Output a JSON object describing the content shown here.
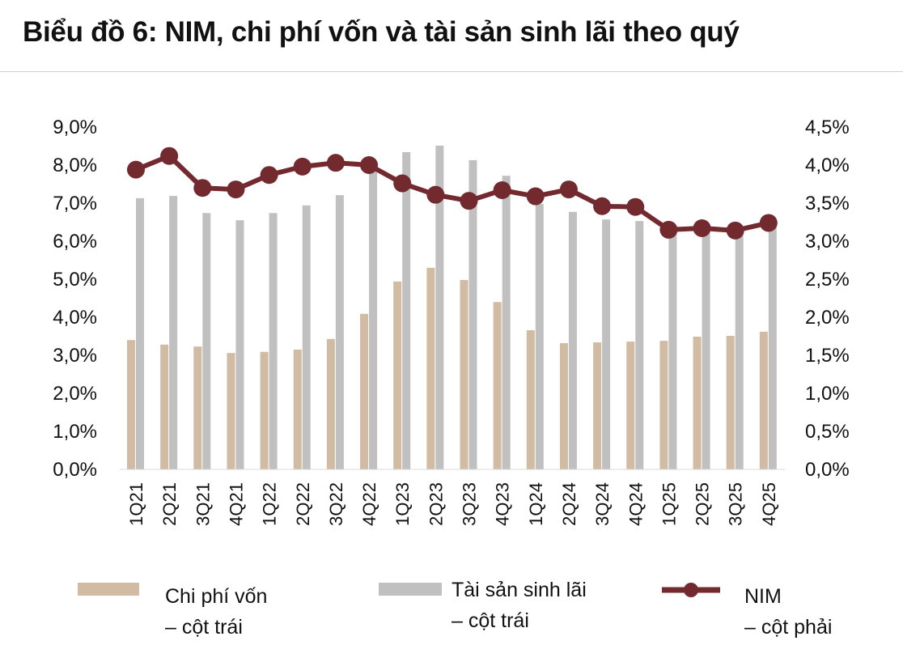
{
  "title": "Biểu đồ 6:  NIM, chi phí vốn và tài sản sinh lãi theo quý",
  "chart_data": {
    "type": "bar+line",
    "title": "Biểu đồ 6:  NIM, chi phí vốn và tài sản sinh lãi theo quý",
    "categories": [
      "1Q21",
      "2Q21",
      "3Q21",
      "4Q21",
      "1Q22",
      "2Q22",
      "3Q22",
      "4Q22",
      "1Q23",
      "2Q23",
      "3Q23",
      "4Q23",
      "1Q24",
      "2Q24",
      "3Q24",
      "4Q24",
      "1Q25",
      "2Q25",
      "3Q25",
      "4Q25"
    ],
    "left_axis": {
      "ylim": [
        0,
        9
      ],
      "ticks": [
        "0,0%",
        "1,0%",
        "2,0%",
        "3,0%",
        "4,0%",
        "5,0%",
        "6,0%",
        "7,0%",
        "8,0%",
        "9,0%"
      ]
    },
    "right_axis": {
      "ylim": [
        0,
        4.5
      ],
      "ticks": [
        "0,0%",
        "0,5%",
        "1,0%",
        "1,5%",
        "2,0%",
        "2,5%",
        "3,0%",
        "3,5%",
        "4,0%",
        "4,5%"
      ]
    },
    "grid": false,
    "legend_position": "bottom",
    "series": [
      {
        "name": "Chi phí vốn",
        "name_suffix": "– cột trái",
        "type": "bar",
        "axis": "left",
        "color": "#d1bca3",
        "values": [
          3.4,
          3.28,
          3.23,
          3.06,
          3.09,
          3.15,
          3.43,
          4.09,
          4.94,
          5.3,
          4.98,
          4.4,
          3.66,
          3.32,
          3.34,
          3.36,
          3.38,
          3.49,
          3.51,
          3.62
        ]
      },
      {
        "name": "Tài sản sinh lãi",
        "name_suffix": "– cột trái",
        "type": "bar",
        "axis": "left",
        "color": "#c0c0c0",
        "values": [
          7.13,
          7.19,
          6.74,
          6.55,
          6.74,
          6.94,
          7.21,
          7.9,
          8.34,
          8.51,
          8.13,
          7.72,
          6.98,
          6.77,
          6.57,
          6.53,
          6.2,
          6.28,
          6.2,
          6.38
        ]
      },
      {
        "name": "NIM",
        "name_suffix": "– cột phải",
        "type": "line",
        "axis": "right",
        "color": "#722a2f",
        "values": [
          3.94,
          4.12,
          3.7,
          3.68,
          3.87,
          3.98,
          4.03,
          4.0,
          3.76,
          3.61,
          3.53,
          3.67,
          3.59,
          3.68,
          3.46,
          3.45,
          3.15,
          3.17,
          3.14,
          3.24
        ]
      }
    ]
  }
}
